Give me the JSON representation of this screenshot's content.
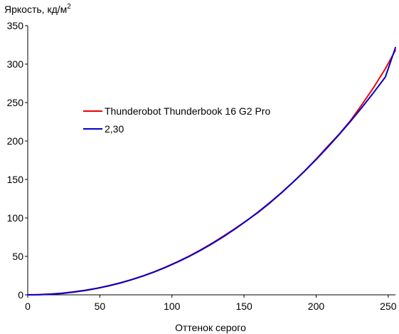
{
  "chart_data": {
    "type": "line",
    "title": "",
    "ylabel": "Яркость, кд/м",
    "ylabel_superscript": "2",
    "xlabel": "Оттенок серого",
    "xlim": [
      0,
      255
    ],
    "ylim": [
      0,
      350
    ],
    "xticks": [
      0,
      50,
      100,
      150,
      200,
      250
    ],
    "yticks": [
      0,
      50,
      100,
      150,
      200,
      250,
      300,
      350
    ],
    "grid": false,
    "legend_position": "center-left",
    "series": [
      {
        "name": "Thunderobot Thunderbook 16 G2 Pro",
        "color": "#ee0000",
        "x": [
          0,
          8,
          16,
          24,
          32,
          40,
          48,
          56,
          64,
          72,
          80,
          88,
          96,
          104,
          112,
          120,
          128,
          136,
          144,
          152,
          160,
          168,
          176,
          184,
          192,
          200,
          208,
          216,
          224,
          232,
          240,
          248,
          255
        ],
        "y": [
          0,
          0.4,
          1.1,
          2.2,
          3.9,
          6.0,
          8.6,
          11.8,
          15.5,
          19.8,
          24.7,
          30.2,
          36.4,
          43.1,
          50.5,
          58.6,
          67.3,
          76.7,
          86.5,
          96.8,
          107.4,
          119.5,
          132.5,
          146.5,
          161.0,
          176.5,
          193.0,
          209.0,
          227.0,
          248.0,
          270.0,
          294.0,
          318.0
        ]
      },
      {
        "name": "2,30",
        "color": "#0000cc",
        "x": [
          0,
          8,
          16,
          24,
          32,
          40,
          48,
          56,
          64,
          72,
          80,
          88,
          96,
          104,
          112,
          120,
          128,
          136,
          144,
          152,
          160,
          168,
          176,
          184,
          192,
          200,
          208,
          216,
          224,
          232,
          240,
          248,
          255
        ],
        "y": [
          0,
          0.1,
          0.8,
          1.9,
          3.6,
          5.7,
          8.4,
          11.6,
          15.3,
          19.6,
          24.5,
          29.9,
          36.0,
          42.7,
          50.0,
          58.0,
          66.6,
          75.9,
          85.9,
          96.6,
          108.0,
          120.1,
          132.9,
          146.5,
          160.8,
          175.9,
          191.8,
          208.5,
          225.9,
          244.2,
          263.3,
          283.2,
          321.5
        ]
      }
    ]
  }
}
